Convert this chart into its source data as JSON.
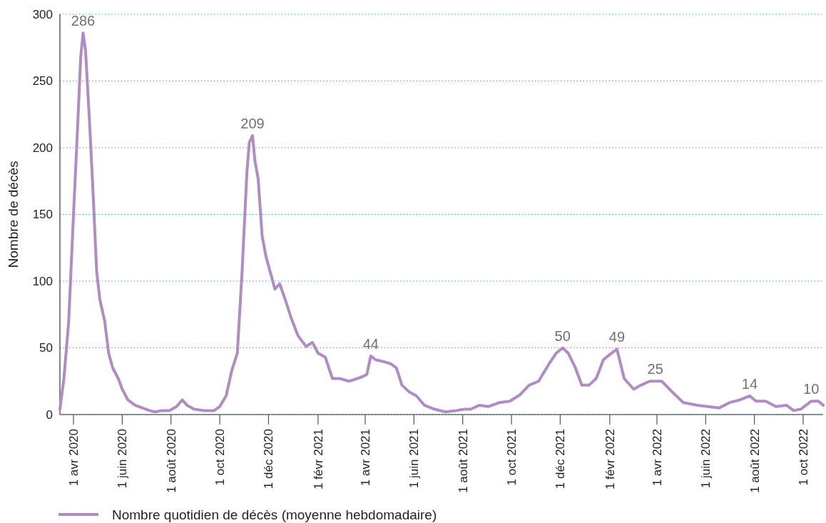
{
  "chart_data": {
    "type": "line",
    "ylabel": "Nombre de décès",
    "xlim": [
      "2020-03-15",
      "2022-10-26"
    ],
    "xticks": [
      {
        "value": "2020-04-01",
        "label": "1 avr 2020"
      },
      {
        "value": "2020-06-01",
        "label": "1 juin 2020"
      },
      {
        "value": "2020-08-01",
        "label": "1 août 2020"
      },
      {
        "value": "2020-10-01",
        "label": "1 oct 2020"
      },
      {
        "value": "2020-12-01",
        "label": "1 déc 2020"
      },
      {
        "value": "2021-02-01",
        "label": "1 févr 2021"
      },
      {
        "value": "2021-04-01",
        "label": "1 avr 2021"
      },
      {
        "value": "2021-06-01",
        "label": "1 juin 2021"
      },
      {
        "value": "2021-08-01",
        "label": "1 août 2021"
      },
      {
        "value": "2021-10-01",
        "label": "1 oct 2021"
      },
      {
        "value": "2021-12-01",
        "label": "1 déc 2021"
      },
      {
        "value": "2022-02-01",
        "label": "1 févr 2022"
      },
      {
        "value": "2022-04-01",
        "label": "1 avr 2022"
      },
      {
        "value": "2022-06-01",
        "label": "1 juin 2022"
      },
      {
        "value": "2022-08-01",
        "label": "1 août 2022"
      },
      {
        "value": "2022-10-01",
        "label": "1 oct 2022"
      }
    ],
    "ylim": [
      0,
      300
    ],
    "yticks": [
      0,
      50,
      100,
      150,
      200,
      250,
      300
    ],
    "grid": "y",
    "legend": "bottom",
    "line_style": "solid",
    "marker": "none",
    "annotations": [
      {
        "text": "286",
        "x": "2020-04-13",
        "y": 286
      },
      {
        "text": "209",
        "x": "2020-11-11",
        "y": 209
      },
      {
        "text": "44",
        "x": "2021-04-08",
        "y": 44
      },
      {
        "text": "50",
        "x": "2021-12-04",
        "y": 50
      },
      {
        "text": "49",
        "x": "2022-02-10",
        "y": 49
      },
      {
        "text": "25",
        "x": "2022-03-30",
        "y": 25
      },
      {
        "text": "14",
        "x": "2022-07-26",
        "y": 14
      },
      {
        "text": "10",
        "x": "2022-10-11",
        "y": 10
      }
    ],
    "x": [
      "2020-03-15",
      "2020-03-20",
      "2020-03-26",
      "2020-04-01",
      "2020-04-06",
      "2020-04-10",
      "2020-04-13",
      "2020-04-16",
      "2020-04-21",
      "2020-04-25",
      "2020-04-30",
      "2020-05-04",
      "2020-05-10",
      "2020-05-15",
      "2020-05-20",
      "2020-05-27",
      "2020-06-01",
      "2020-06-08",
      "2020-06-17",
      "2020-06-26",
      "2020-07-05",
      "2020-07-12",
      "2020-07-21",
      "2020-07-30",
      "2020-08-08",
      "2020-08-15",
      "2020-08-21",
      "2020-08-30",
      "2020-09-11",
      "2020-09-24",
      "2020-10-01",
      "2020-10-09",
      "2020-10-16",
      "2020-10-23",
      "2020-10-29",
      "2020-11-04",
      "2020-11-07",
      "2020-11-11",
      "2020-11-14",
      "2020-11-18",
      "2020-11-23",
      "2020-11-28",
      "2020-12-04",
      "2020-12-09",
      "2020-12-15",
      "2020-12-22",
      "2020-12-29",
      "2021-01-07",
      "2021-01-17",
      "2021-01-25",
      "2021-02-01",
      "2021-02-10",
      "2021-02-19",
      "2021-02-28",
      "2021-03-12",
      "2021-03-27",
      "2021-04-03",
      "2021-04-08",
      "2021-04-14",
      "2021-04-22",
      "2021-05-03",
      "2021-05-10",
      "2021-05-17",
      "2021-05-26",
      "2021-06-04",
      "2021-06-14",
      "2021-06-27",
      "2021-07-10",
      "2021-07-24",
      "2021-08-03",
      "2021-08-11",
      "2021-08-22",
      "2021-09-02",
      "2021-09-16",
      "2021-09-29",
      "2021-10-12",
      "2021-10-23",
      "2021-11-04",
      "2021-11-17",
      "2021-11-26",
      "2021-12-04",
      "2021-12-11",
      "2021-12-20",
      "2021-12-28",
      "2022-01-06",
      "2022-01-15",
      "2022-01-24",
      "2022-02-01",
      "2022-02-10",
      "2022-02-19",
      "2022-03-03",
      "2022-03-12",
      "2022-03-23",
      "2022-04-07",
      "2022-04-20",
      "2022-05-04",
      "2022-05-22",
      "2022-06-18",
      "2022-07-01",
      "2022-07-14",
      "2022-07-26",
      "2022-08-03",
      "2022-08-15",
      "2022-08-28",
      "2022-09-10",
      "2022-09-19",
      "2022-09-28",
      "2022-10-11",
      "2022-10-20",
      "2022-10-26"
    ],
    "series": [
      {
        "name": "Nombre quotidien de décès (moyenne hebdomadaire)",
        "color": "#b08cc4",
        "values": [
          4,
          27,
          70,
          150,
          214,
          268,
          286,
          273,
          220,
          172,
          107,
          86,
          70,
          46,
          35,
          27,
          19,
          11,
          7,
          5,
          3,
          2,
          3,
          3,
          6,
          11,
          7,
          4,
          3,
          3,
          6,
          14,
          33,
          46,
          108,
          182,
          204,
          209,
          190,
          177,
          134,
          118,
          105,
          94,
          98,
          86,
          73,
          59,
          51,
          54,
          46,
          43,
          27,
          27,
          25,
          28,
          30,
          44,
          41,
          40,
          38,
          35,
          22,
          17,
          14,
          7,
          4,
          2,
          3,
          4,
          4,
          7,
          6,
          9,
          10,
          15,
          22,
          25,
          38,
          46,
          50,
          46,
          35,
          22,
          22,
          27,
          41,
          45,
          49,
          27,
          19,
          22,
          25,
          25,
          17,
          9,
          7,
          5,
          9,
          11,
          14,
          10,
          10,
          6,
          7,
          3,
          4,
          10,
          10,
          7
        ]
      }
    ]
  }
}
